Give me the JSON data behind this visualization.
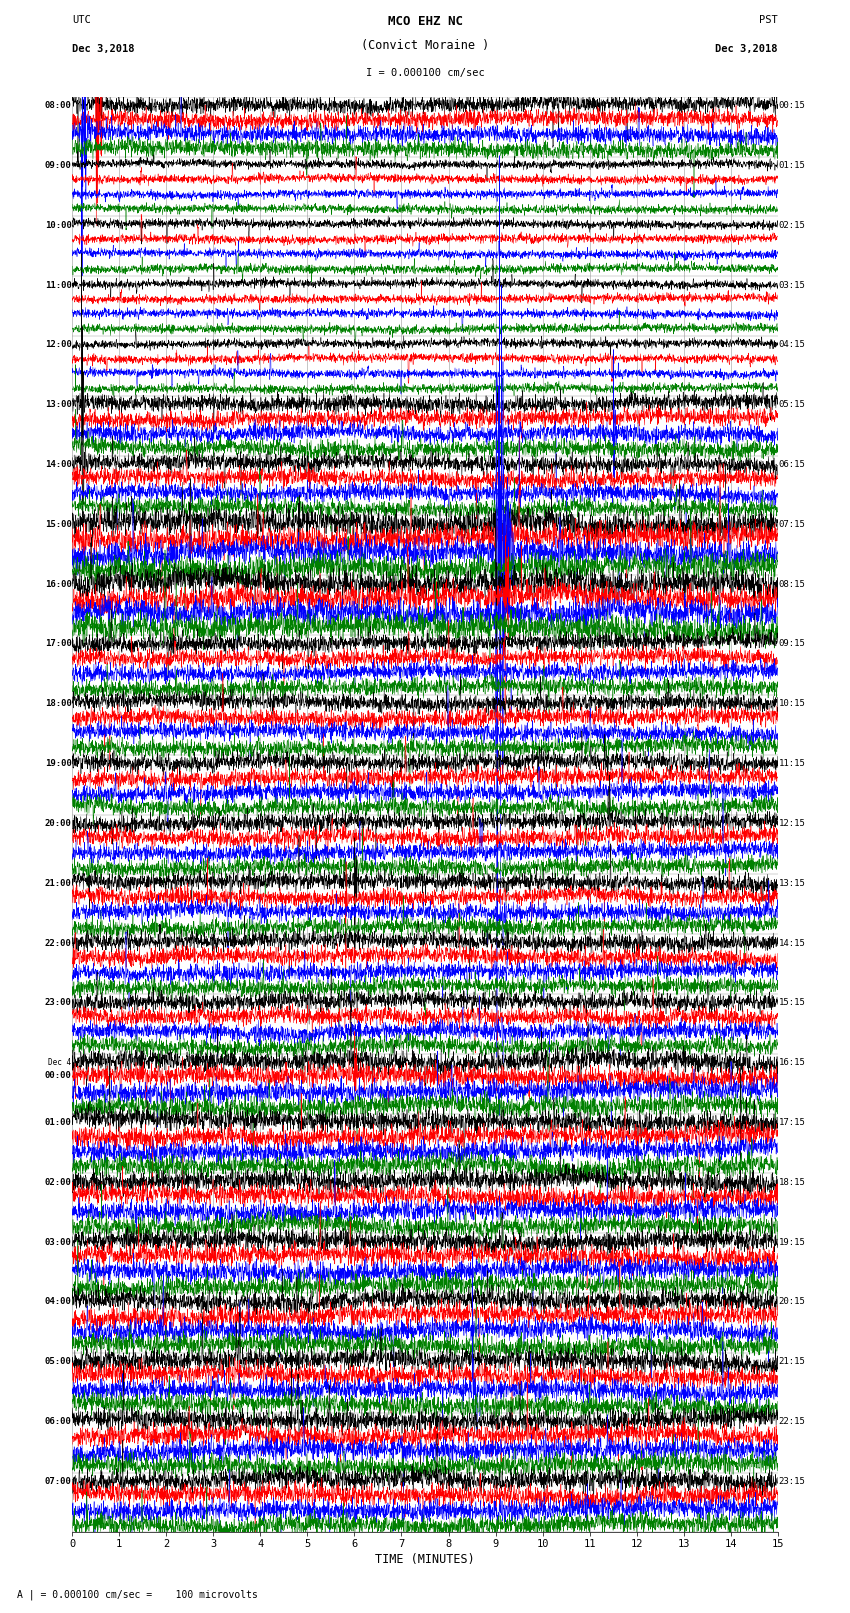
{
  "title_line1": "MCO EHZ NC",
  "title_line2": "(Convict Moraine )",
  "title_line3": "I = 0.000100 cm/sec",
  "left_label_top": "UTC",
  "left_label_date": "Dec 3,2018",
  "right_label_top": "PST",
  "right_label_date": "Dec 3,2018",
  "xlabel": "TIME (MINUTES)",
  "bottom_note": "A | = 0.000100 cm/sec =    100 microvolts",
  "utc_times": [
    "08:00",
    "09:00",
    "10:00",
    "11:00",
    "12:00",
    "13:00",
    "14:00",
    "15:00",
    "16:00",
    "17:00",
    "18:00",
    "19:00",
    "20:00",
    "21:00",
    "22:00",
    "23:00",
    "Dec 4\n00:00",
    "01:00",
    "02:00",
    "03:00",
    "04:00",
    "05:00",
    "06:00",
    "07:00"
  ],
  "pst_times": [
    "00:15",
    "01:15",
    "02:15",
    "03:15",
    "04:15",
    "05:15",
    "06:15",
    "07:15",
    "08:15",
    "09:15",
    "10:15",
    "11:15",
    "12:15",
    "13:15",
    "14:15",
    "15:15",
    "16:15",
    "17:15",
    "18:15",
    "19:15",
    "20:15",
    "21:15",
    "22:15",
    "23:15"
  ],
  "n_rows": 24,
  "n_traces_per_row": 4,
  "trace_colors": [
    "black",
    "red",
    "blue",
    "green"
  ],
  "x_min": 0,
  "x_max": 15,
  "x_ticks": [
    0,
    1,
    2,
    3,
    4,
    5,
    6,
    7,
    8,
    9,
    10,
    11,
    12,
    13,
    14,
    15
  ],
  "bg_color": "#ffffff",
  "grid_color": "#888888",
  "noise_seed": 42
}
